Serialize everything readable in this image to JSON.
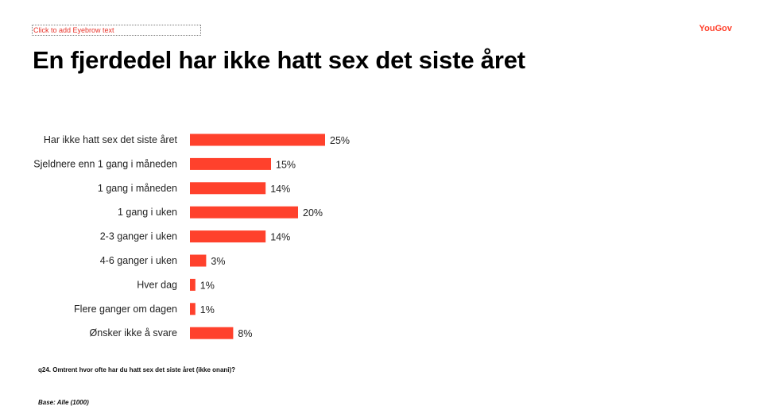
{
  "header": {
    "eyebrow_placeholder": "Click to add Eyebrow text",
    "brand": "YouGov",
    "title": "En fjerdedel har ikke hatt sex det siste året"
  },
  "footer": {
    "question": "q24. Omtrent hvor ofte har du hatt sex det siste året (ikke onani)?",
    "base": "Base: Alle (1000)"
  },
  "colors": {
    "bar": "#ff412c",
    "text": "#222222",
    "brand": "#ff412c"
  },
  "chart_data": {
    "type": "bar",
    "orientation": "horizontal",
    "categories": [
      "Har ikke hatt sex det siste året",
      "Sjeldnere enn 1 gang i måneden",
      "1 gang i måneden",
      "1 gang i uken",
      "2-3 ganger i uken",
      "4-6 ganger i uken",
      "Hver dag",
      "Flere ganger om dagen",
      "Ønsker ikke å svare"
    ],
    "values": [
      25,
      15,
      14,
      20,
      14,
      3,
      1,
      1,
      8
    ],
    "value_labels": [
      "25%",
      "15%",
      "14%",
      "20%",
      "14%",
      "3%",
      "1%",
      "1%",
      "8%"
    ],
    "unit": "%",
    "xlim": [
      0,
      100
    ],
    "grid": false,
    "legend": "none"
  }
}
